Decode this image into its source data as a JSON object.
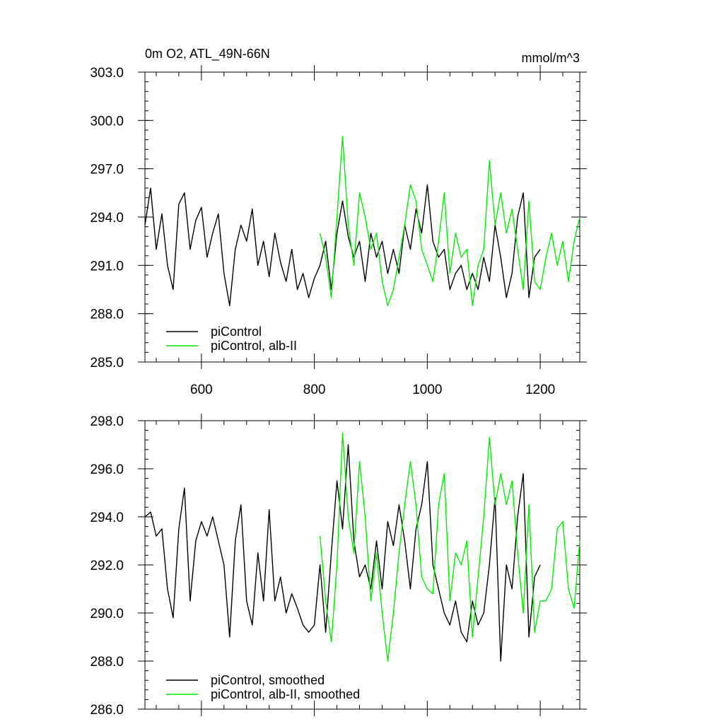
{
  "figure": {
    "title_left": "0m O2, ATL_49N-66N",
    "title_right": "mmol/m^3"
  },
  "colors": {
    "control": "#000000",
    "experiment": "#00ee00",
    "frame": "#000000"
  },
  "chart_data": [
    {
      "type": "line",
      "title": "0m O2, ATL_49N-66N",
      "unit_label": "mmol/m^3",
      "xlim": [
        500,
        1270
      ],
      "ylim": [
        285,
        303
      ],
      "x_ticks": [
        600,
        800,
        1000,
        1200
      ],
      "y_ticks": [
        285,
        288,
        291,
        294,
        297,
        300,
        303
      ],
      "y_tick_labels": [
        "285.0",
        "288.0",
        "291.0",
        "294.0",
        "297.0",
        "300.0",
        "303.0"
      ],
      "x_tick_labels": [
        "600",
        "800",
        "1000",
        "1200"
      ],
      "legend_position": "bottom-left",
      "series": [
        {
          "name": "piControl",
          "color": "#000000",
          "x": [
            500,
            510,
            520,
            530,
            540,
            550,
            560,
            570,
            580,
            590,
            600,
            610,
            620,
            630,
            640,
            650,
            660,
            670,
            680,
            690,
            700,
            710,
            720,
            730,
            740,
            750,
            760,
            770,
            780,
            790,
            800,
            810,
            820,
            830,
            840,
            850,
            860,
            870,
            880,
            890,
            900,
            910,
            920,
            930,
            940,
            950,
            960,
            970,
            980,
            990,
            1000,
            1010,
            1020,
            1030,
            1040,
            1050,
            1060,
            1070,
            1080,
            1090,
            1100,
            1110,
            1120,
            1130,
            1140,
            1150,
            1160,
            1170,
            1180,
            1190,
            1200
          ],
          "values": [
            293.5,
            295.8,
            292.0,
            294.2,
            291.0,
            289.5,
            294.8,
            295.5,
            292.0,
            293.8,
            294.6,
            291.5,
            293.0,
            294.2,
            290.5,
            288.5,
            292.0,
            293.5,
            292.5,
            294.5,
            291.0,
            292.5,
            290.3,
            293.0,
            291.2,
            290.0,
            292.0,
            289.5,
            290.5,
            289.0,
            290.2,
            291.0,
            292.5,
            289.5,
            293.0,
            295.0,
            292.8,
            291.5,
            292.5,
            290.0,
            293.0,
            291.5,
            292.5,
            290.5,
            292.0,
            290.5,
            293.5,
            292.0,
            294.5,
            293.0,
            296.0,
            292.5,
            291.5,
            292.0,
            289.5,
            290.5,
            291.0,
            289.5,
            290.5,
            289.5,
            291.5,
            290.0,
            293.5,
            291.5,
            289.0,
            290.5,
            294.0,
            295.5,
            289.0,
            291.5,
            292.0
          ]
        },
        {
          "name": "piControl, alb-II",
          "color": "#00ee00",
          "x": [
            810,
            820,
            830,
            840,
            850,
            860,
            870,
            880,
            890,
            900,
            910,
            920,
            930,
            940,
            950,
            960,
            970,
            980,
            990,
            1000,
            1010,
            1020,
            1030,
            1040,
            1050,
            1060,
            1070,
            1080,
            1090,
            1100,
            1110,
            1120,
            1130,
            1140,
            1150,
            1160,
            1170,
            1180,
            1190,
            1200,
            1210,
            1220,
            1230,
            1240,
            1250,
            1260,
            1270
          ],
          "values": [
            293.0,
            291.5,
            289.0,
            294.0,
            299.0,
            293.5,
            291.0,
            295.5,
            294.0,
            292.0,
            293.0,
            290.0,
            288.5,
            289.5,
            291.5,
            293.5,
            296.0,
            295.0,
            292.0,
            291.0,
            290.0,
            292.5,
            295.5,
            290.5,
            293.0,
            291.5,
            292.0,
            288.5,
            291.0,
            292.0,
            297.5,
            293.5,
            295.5,
            293.0,
            294.5,
            292.0,
            289.5,
            295.0,
            290.0,
            289.5,
            291.5,
            293.0,
            291.0,
            292.5,
            290.0,
            292.5,
            294.0
          ]
        }
      ]
    },
    {
      "type": "line",
      "xlim": [
        500,
        1270
      ],
      "ylim": [
        286,
        298
      ],
      "x_ticks": [
        600,
        800,
        1000,
        1200
      ],
      "y_ticks": [
        286,
        288,
        290,
        292,
        294,
        296,
        298
      ],
      "y_tick_labels": [
        "286.0",
        "288.0",
        "290.0",
        "292.0",
        "294.0",
        "296.0",
        "298.0"
      ],
      "legend_position": "bottom-left",
      "series": [
        {
          "name": "piControl, smoothed",
          "color": "#000000",
          "x": [
            500,
            510,
            520,
            530,
            540,
            550,
            560,
            570,
            580,
            590,
            600,
            610,
            620,
            630,
            640,
            650,
            660,
            670,
            680,
            690,
            700,
            710,
            720,
            730,
            740,
            750,
            760,
            770,
            780,
            790,
            800,
            810,
            820,
            830,
            840,
            850,
            860,
            870,
            880,
            890,
            900,
            910,
            920,
            930,
            940,
            950,
            960,
            970,
            980,
            990,
            1000,
            1010,
            1020,
            1030,
            1040,
            1050,
            1060,
            1070,
            1080,
            1090,
            1100,
            1110,
            1120,
            1130,
            1140,
            1150,
            1160,
            1170,
            1180,
            1190,
            1200
          ],
          "values": [
            294.0,
            294.2,
            293.2,
            293.5,
            291.0,
            289.8,
            293.5,
            295.2,
            290.5,
            293.0,
            293.8,
            293.2,
            294.0,
            293.0,
            292.0,
            289.0,
            293.0,
            294.5,
            290.5,
            289.5,
            292.5,
            290.5,
            294.3,
            290.5,
            291.5,
            290.0,
            290.8,
            290.2,
            289.5,
            289.2,
            289.5,
            292.0,
            289.2,
            292.5,
            295.5,
            293.5,
            297.0,
            293.0,
            291.5,
            292.0,
            291.0,
            293.0,
            291.0,
            293.8,
            292.8,
            294.5,
            293.0,
            291.0,
            293.5,
            294.5,
            296.3,
            292.0,
            291.0,
            290.0,
            289.5,
            290.5,
            289.2,
            288.8,
            290.5,
            289.5,
            290.0,
            292.0,
            294.8,
            288.0,
            292.0,
            291.0,
            294.0,
            295.8,
            289.0,
            291.5,
            292.0
          ]
        },
        {
          "name": "piControl, alb-II, smoothed",
          "color": "#00ee00",
          "x": [
            810,
            820,
            830,
            840,
            850,
            860,
            870,
            880,
            890,
            900,
            910,
            920,
            930,
            940,
            950,
            960,
            970,
            980,
            990,
            1000,
            1010,
            1020,
            1030,
            1040,
            1050,
            1060,
            1070,
            1080,
            1090,
            1100,
            1110,
            1120,
            1130,
            1140,
            1150,
            1160,
            1170,
            1180,
            1190,
            1200,
            1210,
            1220,
            1230,
            1240,
            1250,
            1260,
            1270
          ],
          "values": [
            293.2,
            290.5,
            288.8,
            292.0,
            297.5,
            294.0,
            292.5,
            296.3,
            294.0,
            290.5,
            292.5,
            290.0,
            288.0,
            290.0,
            292.5,
            294.5,
            296.3,
            294.5,
            291.5,
            291.0,
            290.8,
            294.5,
            295.8,
            290.5,
            292.5,
            292.0,
            293.0,
            289.0,
            291.5,
            294.0,
            297.3,
            294.5,
            295.8,
            294.5,
            295.5,
            292.5,
            290.0,
            294.5,
            289.2,
            290.5,
            290.5,
            291.0,
            293.5,
            293.8,
            291.0,
            290.2,
            293.0
          ]
        }
      ]
    }
  ]
}
